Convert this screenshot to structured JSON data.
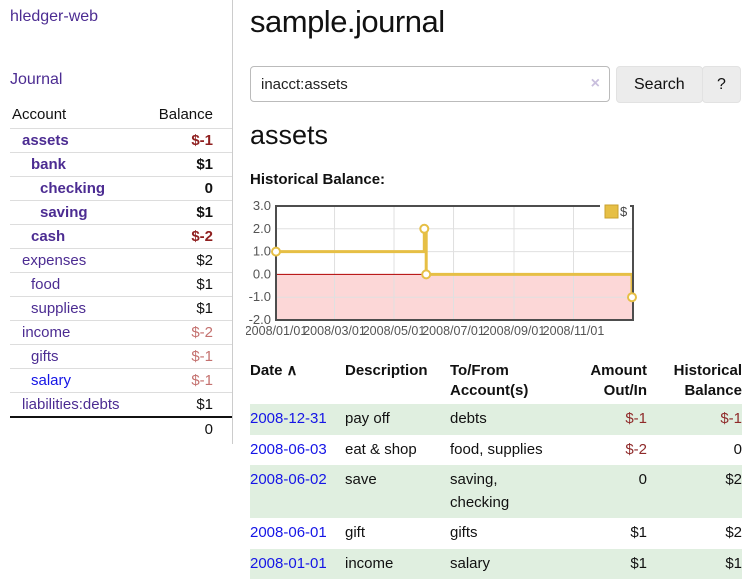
{
  "brand": "hledger-web",
  "nav": {
    "journal": "Journal"
  },
  "page": {
    "title": "sample.journal",
    "account_heading": "assets",
    "chart_title": "Historical Balance:"
  },
  "search": {
    "value": "inacct:assets",
    "clear_icon": "×",
    "search_button": "Search",
    "help_button": "?"
  },
  "sidebar": {
    "headers": {
      "account": "Account",
      "balance": "Balance"
    },
    "rows": [
      {
        "name": "assets",
        "balance": "$-1",
        "indent": 1,
        "bold": true,
        "tone": "neg-strong"
      },
      {
        "name": "bank",
        "balance": "$1",
        "indent": 2,
        "bold": true,
        "tone": ""
      },
      {
        "name": "checking",
        "balance": "0",
        "indent": 3,
        "bold": true,
        "tone": ""
      },
      {
        "name": "saving",
        "balance": "$1",
        "indent": 3,
        "bold": true,
        "tone": ""
      },
      {
        "name": "cash",
        "balance": "$-2",
        "indent": 2,
        "bold": true,
        "tone": "neg-strong"
      },
      {
        "name": "expenses",
        "balance": "$2",
        "indent": 1,
        "bold": false,
        "tone": ""
      },
      {
        "name": "food",
        "balance": "$1",
        "indent": 2,
        "bold": false,
        "tone": ""
      },
      {
        "name": "supplies",
        "balance": "$1",
        "indent": 2,
        "bold": false,
        "tone": ""
      },
      {
        "name": "income",
        "balance": "$-2",
        "indent": 1,
        "bold": false,
        "tone": "neg-soft"
      },
      {
        "name": "gifts",
        "balance": "$-1",
        "indent": 2,
        "bold": false,
        "tone": "neg-soft"
      },
      {
        "name": "salary",
        "balance": "$-1",
        "indent": 2,
        "bold": false,
        "tone": "neg-soft",
        "unvisited": true
      },
      {
        "name": "liabilities:debts",
        "balance": "$1",
        "indent": 1,
        "bold": false,
        "tone": ""
      }
    ],
    "total": "0"
  },
  "chart_data": {
    "type": "line",
    "title": "Historical Balance:",
    "step": true,
    "series": [
      {
        "name": "$",
        "color": "#e6bf45",
        "points": [
          {
            "date": "2008-01-01",
            "value": 1
          },
          {
            "date": "2008-06-01",
            "value": 2
          },
          {
            "date": "2008-06-03",
            "value": 0
          },
          {
            "date": "2008-12-31",
            "value": -1
          }
        ]
      }
    ],
    "xlim": [
      "2008-01-01",
      "2009-01-01"
    ],
    "ylim": [
      -2,
      3
    ],
    "yticks": [
      "3.0",
      "2.0",
      "1.0",
      "0.0",
      "-1.0",
      "-2.0"
    ],
    "xticks": [
      "2008/01/01",
      "2008/03/01",
      "2008/05/01",
      "2008/07/01",
      "2008/09/01",
      "2008/11/01"
    ],
    "grid": true,
    "legend_position": "top-right",
    "legend_label": "$",
    "colors": {
      "negative_region": "#fcd7d7",
      "zero_line": "#b00000",
      "grid": "#e0e0e0",
      "border": "#4d4d4d",
      "tick_label": "#545454",
      "point_fill": "#ffffff",
      "line_edge": "#caa22e"
    }
  },
  "register": {
    "headers": {
      "date": "Date",
      "sort_icon": "∧",
      "description": "Description",
      "accounts_line1": "To/From",
      "accounts_line2": "Account(s)",
      "amount_line1": "Amount",
      "amount_line2": "Out/In",
      "balance_line1": "Historical",
      "balance_line2": "Balance"
    },
    "rows": [
      {
        "date": "2008-12-31",
        "description": "pay off",
        "accounts": "debts",
        "amount": "$-1",
        "amount_negative": true,
        "balance": "$-1",
        "balance_negative": true
      },
      {
        "date": "2008-06-03",
        "description": "eat & shop",
        "accounts": "food, supplies",
        "amount": "$-2",
        "amount_negative": true,
        "balance": "0",
        "balance_negative": false
      },
      {
        "date": "2008-06-02",
        "description": "save",
        "accounts": "saving,\nchecking",
        "amount": "0",
        "amount_negative": false,
        "balance": "$2",
        "balance_negative": false
      },
      {
        "date": "2008-06-01",
        "description": "gift",
        "accounts": "gifts",
        "amount": "$1",
        "amount_negative": false,
        "balance": "$2",
        "balance_negative": false
      },
      {
        "date": "2008-01-01",
        "description": "income",
        "accounts": "salary",
        "amount": "$1",
        "amount_negative": false,
        "balance": "$1",
        "balance_negative": false
      }
    ]
  }
}
